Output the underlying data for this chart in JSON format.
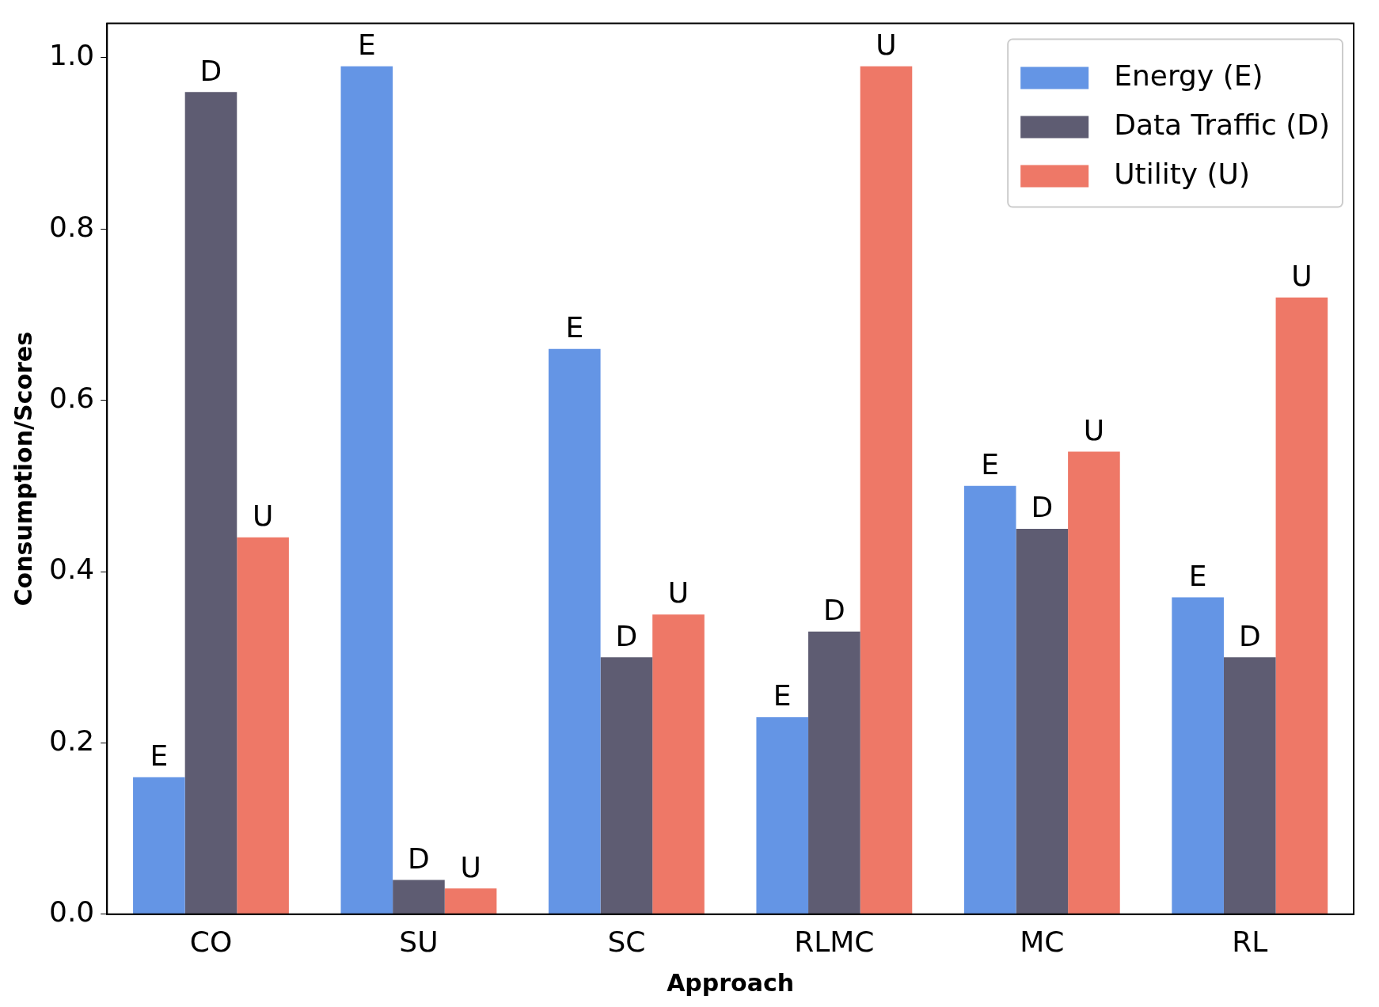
{
  "chart_data": {
    "type": "bar",
    "xlabel": "Approach",
    "ylabel": "Consumption/Scores",
    "categories": [
      "CO",
      "SU",
      "SC",
      "RLMC",
      "MC",
      "RL"
    ],
    "series": [
      {
        "name": "Energy (E)",
        "color": "#6495e5",
        "values": [
          0.16,
          0.99,
          0.66,
          0.23,
          0.5,
          0.37
        ],
        "value_labels": [
          "E",
          "E",
          "E",
          "E",
          "E",
          "E"
        ]
      },
      {
        "name": "Data Traffic (D)",
        "color": "#5e5c72",
        "values": [
          0.96,
          0.04,
          0.3,
          0.33,
          0.45,
          0.3
        ],
        "value_labels": [
          "D",
          "D",
          "D",
          "D",
          "D",
          "D"
        ]
      },
      {
        "name": "Utility (U)",
        "color": "#ee7867",
        "values": [
          0.44,
          0.03,
          0.35,
          0.99,
          0.54,
          0.72
        ],
        "value_labels": [
          "U",
          "U",
          "U",
          "U",
          "U",
          "U"
        ]
      }
    ],
    "ylim": [
      0,
      1.04
    ],
    "yticks": [
      {
        "value": 0,
        "label": "0.0"
      },
      {
        "value": 0.2,
        "label": "0.2"
      },
      {
        "value": 0.4,
        "label": "0.4"
      },
      {
        "value": 0.6,
        "label": "0.6"
      },
      {
        "value": 0.8,
        "label": "0.8"
      },
      {
        "value": 1,
        "label": "1.0"
      }
    ],
    "grid": false,
    "legend": "top right"
  }
}
